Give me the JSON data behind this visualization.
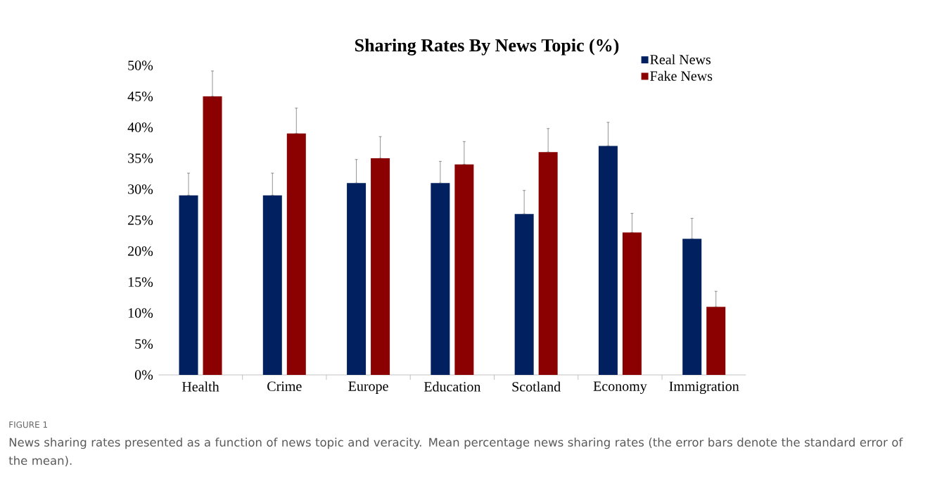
{
  "chart_data": {
    "type": "bar",
    "title": "Sharing Rates By News Topic (%)",
    "categories": [
      "Health",
      "Crime",
      "Europe",
      "Education",
      "Scotland",
      "Economy",
      "Immigration"
    ],
    "series": [
      {
        "name": "Real News",
        "color": "#002060",
        "values": [
          29,
          29,
          31,
          31,
          26,
          37,
          22
        ],
        "errors": [
          [
            29,
            32.6
          ],
          [
            29,
            32.6
          ],
          [
            31,
            34.8
          ],
          [
            31,
            34.5
          ],
          [
            26,
            29.8
          ],
          [
            37,
            40.8
          ],
          [
            22,
            25.3
          ]
        ]
      },
      {
        "name": "Fake News",
        "color": "#8b0000",
        "values": [
          45,
          39,
          35,
          34,
          36,
          23,
          11
        ],
        "errors": [
          [
            45,
            49.1
          ],
          [
            39,
            43.1
          ],
          [
            35,
            38.5
          ],
          [
            34,
            37.7
          ],
          [
            36,
            39.8
          ],
          [
            23,
            26.1
          ],
          [
            11,
            13.5
          ]
        ]
      }
    ],
    "ylim": [
      0,
      50
    ],
    "yticks": [
      {
        "value": 0,
        "label": "0%"
      },
      {
        "value": 5,
        "label": "5%"
      },
      {
        "value": 10,
        "label": "10%"
      },
      {
        "value": 15,
        "label": "15%"
      },
      {
        "value": 20,
        "label": "20%"
      },
      {
        "value": 25,
        "label": "25%"
      },
      {
        "value": 30,
        "label": "30%"
      },
      {
        "value": 35,
        "label": "35%"
      },
      {
        "value": 40,
        "label": "40%"
      },
      {
        "value": 45,
        "label": "45%"
      },
      {
        "value": 50,
        "label": "50%"
      }
    ],
    "legend": "top right",
    "annotations": [
      "FIGURE 1",
      "News sharing rates presented as a function of news topic and veracity. Mean percentage news sharing rates (the error bars denote the standard error of the mean)."
    ]
  }
}
